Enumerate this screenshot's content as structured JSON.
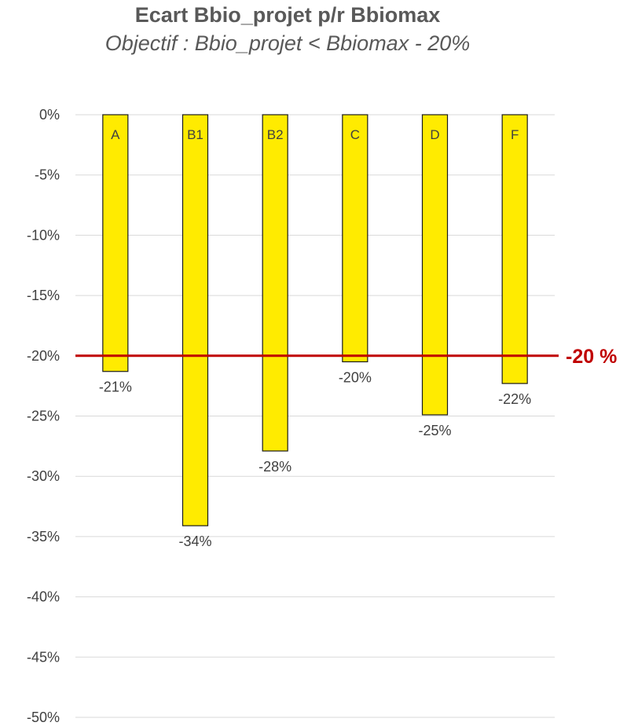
{
  "colors": {
    "bar": "#FFEB00",
    "bar_stroke": "#1a1a1a",
    "grid": "#d9d9d9",
    "reference": "#C00000",
    "text": "#404040"
  },
  "chart_data": {
    "type": "bar",
    "title": "Ecart Bbio_projet p/r Bbiomax",
    "subtitle": "Objectif : Bbio_projet < Bbiomax - 20%",
    "categories": [
      "A",
      "B1",
      "B2",
      "C",
      "D",
      "F"
    ],
    "values": [
      -21.3,
      -34.1,
      -27.9,
      -20.5,
      -24.9,
      -22.3
    ],
    "data_labels": [
      "-21%",
      "-34%",
      "-28%",
      "-20%",
      "-25%",
      "-22%"
    ],
    "xlabel": "",
    "ylabel": "",
    "ylim": [
      -50,
      0
    ],
    "y_ticks": [
      0,
      -5,
      -10,
      -15,
      -20,
      -25,
      -30,
      -35,
      -40,
      -45,
      -50
    ],
    "y_tick_labels": [
      "0%",
      "-5%",
      "-10%",
      "-15%",
      "-20%",
      "-25%",
      "-30%",
      "-35%",
      "-40%",
      "-45%",
      "-50%"
    ],
    "grid": true,
    "reference_line": {
      "value": -20,
      "label": "-20 %"
    }
  }
}
